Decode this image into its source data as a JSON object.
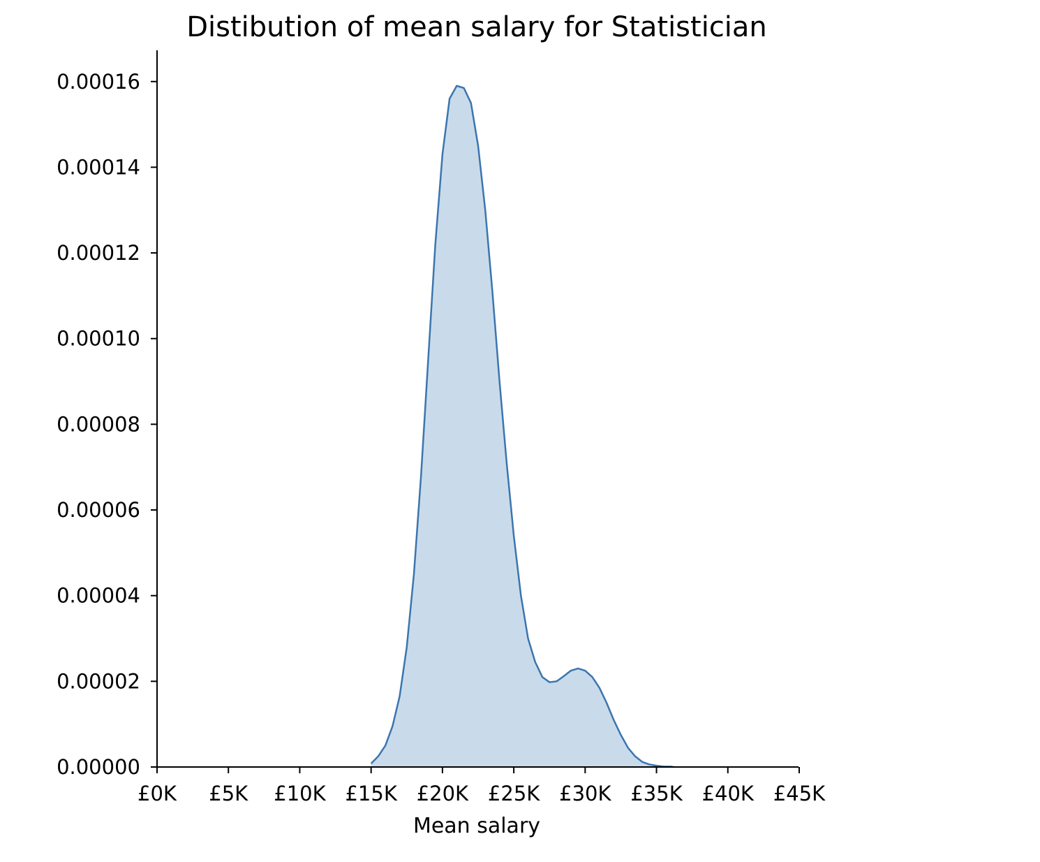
{
  "chart_data": {
    "type": "area",
    "title": "Distibution of mean salary for Statistician",
    "xlabel": "Mean salary",
    "ylabel": "",
    "xlim": [
      0,
      45000
    ],
    "ylim": [
      0,
      0.000166
    ],
    "xticks": [
      0,
      5000,
      10000,
      15000,
      20000,
      25000,
      30000,
      35000,
      40000,
      45000
    ],
    "xtick_labels": [
      "£0K",
      "£5K",
      "£10K",
      "£15K",
      "£20K",
      "£25K",
      "£30K",
      "£35K",
      "£40K",
      "£45K"
    ],
    "yticks": [
      0,
      2e-05,
      4e-05,
      6e-05,
      8e-05,
      0.0001,
      0.00012,
      0.00014,
      0.00016
    ],
    "ytick_labels": [
      "0.00000",
      "0.00002",
      "0.00004",
      "0.00006",
      "0.00008",
      "0.00010",
      "0.00012",
      "0.00014",
      "0.00016"
    ],
    "grid": false,
    "series": [
      {
        "line_color": "#3b75af",
        "fill_color": "#c9dbea",
        "x": [
          15000,
          15500,
          16000,
          16500,
          17000,
          17500,
          18000,
          18500,
          19000,
          19500,
          20000,
          20500,
          21000,
          21500,
          22000,
          22500,
          23000,
          23500,
          24000,
          24500,
          25000,
          25500,
          26000,
          26500,
          27000,
          27500,
          28000,
          28500,
          29000,
          29500,
          30000,
          30500,
          31000,
          31500,
          32000,
          32500,
          33000,
          33500,
          34000,
          34500,
          35000,
          35500,
          36000,
          36200
        ],
        "y": [
          8e-07,
          2.5e-06,
          5e-06,
          9.5e-06,
          1.65e-05,
          2.8e-05,
          4.5e-05,
          6.8e-05,
          9.5e-05,
          0.000122,
          0.000143,
          0.000156,
          0.000159,
          0.0001585,
          0.000155,
          0.000145,
          0.00013,
          0.000111,
          9e-05,
          7.1e-05,
          5.4e-05,
          4e-05,
          3e-05,
          2.45e-05,
          2.1e-05,
          1.98e-05,
          2e-05,
          2.12e-05,
          2.25e-05,
          2.3e-05,
          2.25e-05,
          2.1e-05,
          1.85e-05,
          1.5e-05,
          1.1e-05,
          7.5e-06,
          4.5e-06,
          2.5e-06,
          1.2e-06,
          6e-07,
          3e-07,
          1e-07,
          1e-07,
          0
        ]
      }
    ]
  }
}
